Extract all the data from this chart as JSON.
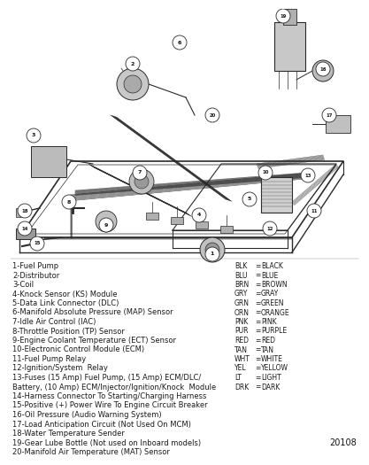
{
  "background_color": "#ffffff",
  "labels_left": [
    "1-Fuel Pump",
    "2-Distributor",
    "3-Coil",
    "4-Knock Sensor (KS) Module",
    "5-Data Link Connector (DLC)",
    "6-Manifold Absolute Pressure (MAP) Sensor",
    "7-Idle Air Control (IAC)",
    "8-Throttle Position (TP) Sensor",
    "9-Engine Coolant Temperature (ECT) Sensor",
    "10-Electronic Control Module (ECM)",
    "11-Fuel Pump Relay",
    "12-Ignition/System  Relay",
    "13-Fuses (15 Amp) Fuel Pump, (15 Amp) ECM/DLC/",
    "Battery, (10 Amp) ECM/Injector/Ignition/Knock  Module",
    "14-Harness Connector To Starting/Charging Harness",
    "15-Positive (+) Power Wire To Engine Circuit Breaker",
    "16-Oil Pressure (Audio Warning System)",
    "17-Load Anticipation Circuit (Not Used On MCM)",
    "18-Water Temperature Sender",
    "19-Gear Lube Bottle (Not used on Inboard models)",
    "20-Manifold Air Temperature (MAT) Sensor"
  ],
  "legend_entries": [
    [
      "BLK",
      "BLACK"
    ],
    [
      "BLU",
      "BLUE"
    ],
    [
      "BRN",
      "BROWN"
    ],
    [
      "GRY",
      "GRAY"
    ],
    [
      "GRN",
      "GREEN"
    ],
    [
      "ORN",
      "ORANGE"
    ],
    [
      "PNK",
      "PINK"
    ],
    [
      "PUR",
      "PURPLE"
    ],
    [
      "RED",
      "RED"
    ],
    [
      "TAN",
      "TAN"
    ],
    [
      "WHT",
      "WHITE"
    ],
    [
      "YEL",
      "YELLOW"
    ],
    [
      "LT",
      "LIGHT"
    ],
    [
      "DRK",
      "DARK"
    ]
  ],
  "doc_number": "20108",
  "label_fontsize": 6.0,
  "legend_fontsize": 5.5,
  "label_text_color": "#1a1a1a",
  "lc": "#2a2a2a"
}
